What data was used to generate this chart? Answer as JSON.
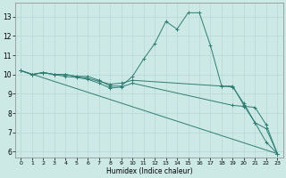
{
  "xlabel": "Humidex (Indice chaleur)",
  "xlim": [
    -0.5,
    23.5
  ],
  "ylim": [
    5.7,
    13.7
  ],
  "yticks": [
    6,
    7,
    8,
    9,
    10,
    11,
    12,
    13
  ],
  "xticks": [
    0,
    1,
    2,
    3,
    4,
    5,
    6,
    7,
    8,
    9,
    10,
    11,
    12,
    13,
    14,
    15,
    16,
    17,
    18,
    19,
    20,
    21,
    22,
    23
  ],
  "bg_color": "#cce9e6",
  "line_color": "#2e7d73",
  "grid_color": "#b8d8d5",
  "lines": [
    {
      "x": [
        0,
        1,
        2,
        3,
        4,
        5,
        6,
        7,
        8,
        9,
        10,
        11,
        12,
        13,
        14,
        15,
        16,
        17,
        18,
        19,
        20,
        21,
        22,
        23
      ],
      "y": [
        10.2,
        10.0,
        10.1,
        10.0,
        10.0,
        9.9,
        9.9,
        9.7,
        9.4,
        9.4,
        9.9,
        10.8,
        11.6,
        12.75,
        12.35,
        13.2,
        13.2,
        11.5,
        9.4,
        9.4,
        8.4,
        7.5,
        6.5,
        5.9
      ]
    },
    {
      "x": [
        0,
        1,
        2,
        3,
        4,
        5,
        6,
        7,
        8,
        9,
        10,
        18,
        19,
        20,
        21,
        22,
        23
      ],
      "y": [
        10.2,
        10.0,
        10.1,
        10.0,
        10.0,
        9.9,
        9.8,
        9.65,
        9.5,
        9.55,
        9.7,
        9.4,
        9.35,
        8.5,
        7.5,
        7.2,
        5.9
      ]
    },
    {
      "x": [
        0,
        1,
        2,
        3,
        4,
        5,
        6,
        7,
        8,
        9,
        10,
        19,
        20,
        21,
        22,
        23
      ],
      "y": [
        10.2,
        10.0,
        10.1,
        10.0,
        9.9,
        9.85,
        9.75,
        9.55,
        9.3,
        9.35,
        9.55,
        8.4,
        8.35,
        8.3,
        7.4,
        5.9
      ]
    },
    {
      "x": [
        0,
        23
      ],
      "y": [
        10.2,
        5.9
      ]
    }
  ]
}
